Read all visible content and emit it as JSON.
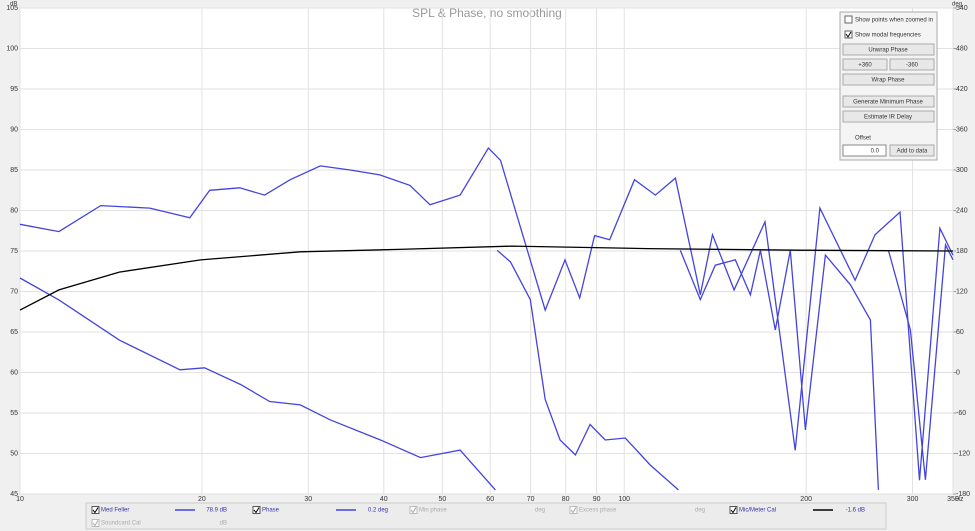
{
  "chart_data": {
    "type": "line",
    "title": "SPL & Phase, no smoothing",
    "y_unit": "dB",
    "y2_unit": "deg",
    "x_unit": "Hz",
    "log_x": true,
    "grid": true,
    "xlim": [
      10,
      350
    ],
    "xticks": [
      10,
      20,
      30,
      40,
      50,
      60,
      70,
      80,
      90,
      100,
      200,
      300,
      350
    ],
    "ylim": [
      45,
      105
    ],
    "yticks": [
      45,
      50,
      55,
      60,
      65,
      70,
      75,
      80,
      85,
      90,
      95,
      100,
      105
    ],
    "y2lim": [
      -180,
      540
    ],
    "y2ticks": [
      -180,
      -120,
      -60,
      0,
      60,
      120,
      180,
      240,
      300,
      360,
      420,
      480,
      540
    ],
    "series": [
      {
        "name": "Med Feller",
        "readout": "78.9 dB",
        "color": "#4444dd",
        "x": [
          10,
          11.6,
          13.6,
          16.4,
          19.1,
          20.6,
          23.1,
          25.4,
          28,
          31.4,
          35.2,
          39.4,
          44.2,
          47.7,
          53.5,
          59.6,
          62.4,
          66,
          74,
          79.8,
          84.4,
          89.3,
          94.6,
          104,
          112.6,
          121.5,
          133.6,
          140,
          152,
          171,
          191.8,
          210.8,
          241,
          260,
          286,
          308,
          333,
          350
        ],
        "values": [
          78.3,
          77.4,
          80.6,
          80.3,
          79.1,
          82.5,
          82.8,
          81.9,
          83.8,
          85.5,
          85,
          84.4,
          83.1,
          80.7,
          81.9,
          87.7,
          86.2,
          80.1,
          67.7,
          73.9,
          69.2,
          76.9,
          76.4,
          83.8,
          81.9,
          84,
          69.6,
          77,
          70.2,
          78.6,
          50.4,
          80.3,
          71.4,
          77,
          79.8,
          46.7,
          77.8,
          74.5
        ]
      },
      {
        "name": "Phase",
        "readout": "0.2 deg",
        "color": "#4444dd",
        "axis": "y2",
        "x": [
          10,
          11.6,
          14.6,
          18.4,
          20.2,
          23.2,
          25.9,
          29.1,
          32.6,
          39.5,
          46,
          53.5,
          61.2,
          null,
          61.6,
          64.8,
          69.9,
          74,
          78.3,
          83,
          87.8,
          93,
          100.4,
          110.4,
          122.9,
          null,
          123.8,
          133.6,
          141.5,
          152.7,
          161.7,
          168,
          177.8,
          188.3,
          199.4,
          215.2,
          236.7,
          255.5,
          263.4,
          null,
          273.6,
          297.6,
          315.1,
          340.1,
          350
        ],
        "values": [
          140,
          107.5,
          48,
          4,
          7,
          -18,
          -43,
          -48,
          -70,
          -100,
          -126,
          -115,
          -174,
          null,
          181,
          164,
          108,
          -40,
          -100,
          -122,
          -77,
          -100,
          -97,
          -137,
          -174,
          null,
          181,
          108,
          159,
          167,
          115,
          181,
          63,
          181,
          -85,
          174,
          130,
          78,
          -174,
          null,
          181,
          63,
          -159,
          189,
          167
        ]
      },
      {
        "name": "Mic/Meter Cal",
        "readout": "-1.6 dB",
        "color": "#000000",
        "x": [
          10,
          11.6,
          14.6,
          19.9,
          29.1,
          42.3,
          65.2,
          109.4,
          194.2,
          350
        ],
        "values": [
          67.7,
          70.2,
          72.4,
          73.9,
          74.9,
          75.2,
          75.6,
          75.3,
          75.1,
          75
        ]
      }
    ],
    "other_traces": [
      {
        "name": "Min phase",
        "readout": "deg"
      },
      {
        "name": "Excess phase",
        "readout": "deg"
      },
      {
        "name": "Soundcard Cal",
        "readout": "dB"
      }
    ]
  },
  "controls": {
    "show_points": "Show points when zoomed in",
    "show_modal": "Show modal frequencies",
    "unwrap": "Unwrap Phase",
    "plus": "+360",
    "minus": "-360",
    "wrap": "Wrap Phase",
    "min_phase": "Generate Minimum Phase",
    "ir_delay": "Estimate IR Delay",
    "offset_label": "Offset",
    "offset_value": "0.0",
    "add": "Add to data"
  }
}
